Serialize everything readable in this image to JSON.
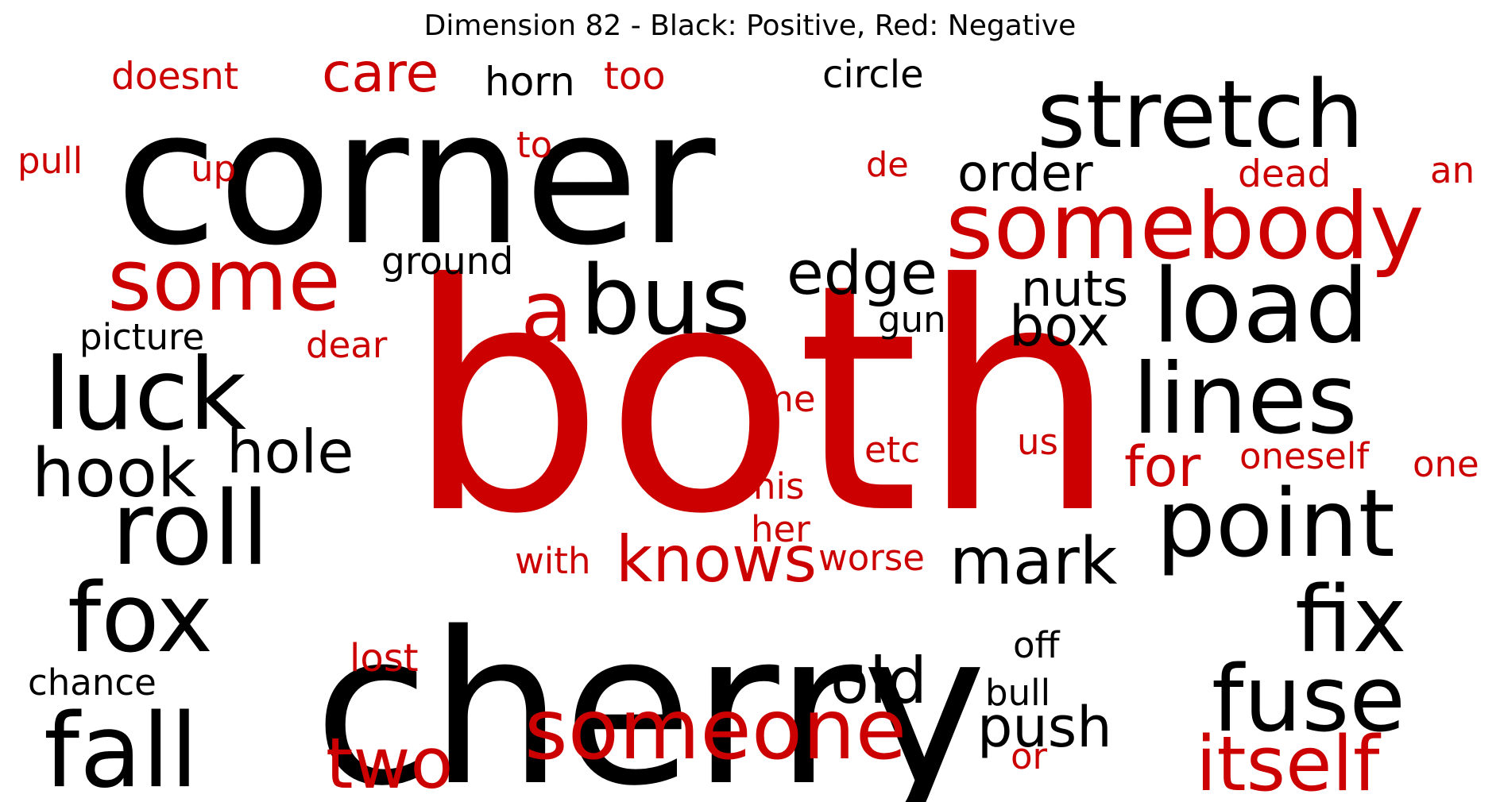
{
  "title": "Dimension 82 - Black: Positive, Red: Negative",
  "colors": {
    "positive": "#000000",
    "negative": "#cc0000"
  },
  "words": [
    {
      "text": "corner",
      "polarity": "positive"
    },
    {
      "text": "both",
      "polarity": "negative"
    },
    {
      "text": "cherry",
      "polarity": "positive"
    },
    {
      "text": "stretch",
      "polarity": "positive"
    },
    {
      "text": "somebody",
      "polarity": "negative"
    },
    {
      "text": "some",
      "polarity": "negative"
    },
    {
      "text": "a",
      "polarity": "negative"
    },
    {
      "text": "bus",
      "polarity": "positive"
    },
    {
      "text": "load",
      "polarity": "positive"
    },
    {
      "text": "luck",
      "polarity": "positive"
    },
    {
      "text": "lines",
      "polarity": "positive"
    },
    {
      "text": "roll",
      "polarity": "positive"
    },
    {
      "text": "point",
      "polarity": "positive"
    },
    {
      "text": "fox",
      "polarity": "positive"
    },
    {
      "text": "fix",
      "polarity": "positive"
    },
    {
      "text": "fall",
      "polarity": "positive"
    },
    {
      "text": "fuse",
      "polarity": "positive"
    },
    {
      "text": "someone",
      "polarity": "negative"
    },
    {
      "text": "itself",
      "polarity": "negative"
    },
    {
      "text": "two",
      "polarity": "negative"
    },
    {
      "text": "knows",
      "polarity": "negative"
    },
    {
      "text": "mark",
      "polarity": "positive"
    },
    {
      "text": "hook",
      "polarity": "positive"
    },
    {
      "text": "hole",
      "polarity": "positive"
    },
    {
      "text": "edge",
      "polarity": "positive"
    },
    {
      "text": "nuts",
      "polarity": "positive"
    },
    {
      "text": "box",
      "polarity": "positive"
    },
    {
      "text": "order",
      "polarity": "positive"
    },
    {
      "text": "care",
      "polarity": "negative"
    },
    {
      "text": "horn",
      "polarity": "positive"
    },
    {
      "text": "too",
      "polarity": "negative"
    },
    {
      "text": "doesnt",
      "polarity": "negative"
    },
    {
      "text": "circle",
      "polarity": "positive"
    },
    {
      "text": "pull",
      "polarity": "negative"
    },
    {
      "text": "up",
      "polarity": "negative"
    },
    {
      "text": "to",
      "polarity": "negative"
    },
    {
      "text": "de",
      "polarity": "negative"
    },
    {
      "text": "dead",
      "polarity": "negative"
    },
    {
      "text": "an",
      "polarity": "negative"
    },
    {
      "text": "ground",
      "polarity": "positive"
    },
    {
      "text": "gun",
      "polarity": "positive"
    },
    {
      "text": "picture",
      "polarity": "positive"
    },
    {
      "text": "dear",
      "polarity": "negative"
    },
    {
      "text": "me",
      "polarity": "negative"
    },
    {
      "text": "etc",
      "polarity": "negative"
    },
    {
      "text": "us",
      "polarity": "negative"
    },
    {
      "text": "for",
      "polarity": "negative"
    },
    {
      "text": "oneself",
      "polarity": "negative"
    },
    {
      "text": "one",
      "polarity": "negative"
    },
    {
      "text": "his",
      "polarity": "negative"
    },
    {
      "text": "her",
      "polarity": "negative"
    },
    {
      "text": "with",
      "polarity": "negative"
    },
    {
      "text": "worse",
      "polarity": "negative"
    },
    {
      "text": "off",
      "polarity": "positive"
    },
    {
      "text": "old",
      "polarity": "positive"
    },
    {
      "text": "bull",
      "polarity": "positive"
    },
    {
      "text": "push",
      "polarity": "positive"
    },
    {
      "text": "or",
      "polarity": "negative"
    },
    {
      "text": "lost",
      "polarity": "negative"
    },
    {
      "text": "chance",
      "polarity": "positive"
    }
  ]
}
